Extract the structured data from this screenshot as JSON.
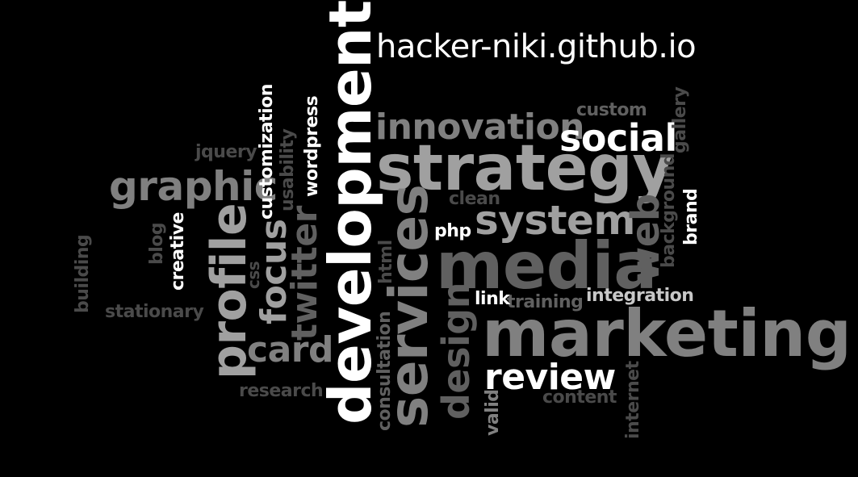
{
  "site_title": "hacker-niki.github.io",
  "words": {
    "development": "development",
    "strategy": "strategy",
    "marketing": "marketing",
    "media": "media",
    "services": "services",
    "profile": "profile",
    "innovation": "innovation",
    "social": "social",
    "system": "system",
    "graphic": "graphic",
    "review": "review",
    "design": "design",
    "twitter": "twitter",
    "focus": "focus",
    "card": "card",
    "web": "web",
    "integration": "integration",
    "training": "training",
    "link": "link",
    "php": "php",
    "clean": "clean",
    "custom": "custom",
    "gallery": "gallery",
    "background": "background",
    "brand": "brand",
    "content": "content",
    "internet": "internet",
    "valid": "valid",
    "consultation": "consultation",
    "html": "html",
    "research": "research",
    "stationary": "stationary",
    "building": "building",
    "blog": "blog",
    "creative": "creative",
    "css": "css",
    "jquery": "jquery",
    "customization": "customization",
    "usability": "usability",
    "wordpress": "wordpress"
  }
}
